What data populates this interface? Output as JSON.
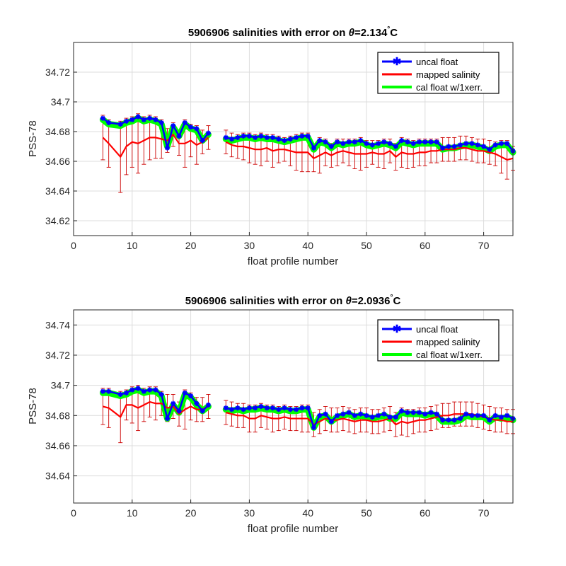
{
  "chart_data": [
    {
      "type": "line",
      "title_prefix": "5906906 salinities with error on ",
      "title_theta": "θ",
      "title_suffix": "=2.134",
      "title_degree": "°",
      "title_unit": "C",
      "xlabel": "float profile number",
      "ylabel": "PSS-78",
      "xlim": [
        0,
        75
      ],
      "ylim": [
        34.61,
        34.74
      ],
      "xticks": [
        0,
        10,
        20,
        30,
        40,
        50,
        60,
        70
      ],
      "yticks": [
        34.62,
        34.64,
        34.66,
        34.68,
        34.7,
        34.72
      ],
      "ytick_labels": [
        "34.62",
        "34.64",
        "34.66",
        "34.68",
        "34.7",
        "34.72"
      ],
      "grid": true,
      "legend_position": "top-right",
      "legend": [
        "uncal float",
        "mapped salinity",
        "cal float w/1xerr."
      ],
      "colors": {
        "uncal": "#0000ff",
        "mapped": "#ff0000",
        "cal": "#00ff00"
      },
      "x": [
        5,
        6,
        8,
        9,
        10,
        11,
        12,
        13,
        14,
        15,
        16,
        17,
        18,
        19,
        20,
        21,
        22,
        23,
        26,
        27,
        28,
        29,
        30,
        31,
        32,
        33,
        34,
        35,
        36,
        37,
        38,
        39,
        40,
        41,
        42,
        43,
        44,
        45,
        46,
        47,
        48,
        49,
        50,
        51,
        52,
        53,
        54,
        55,
        56,
        57,
        58,
        59,
        60,
        61,
        62,
        63,
        64,
        65,
        66,
        67,
        68,
        69,
        70,
        71,
        72,
        73,
        74,
        75
      ],
      "series": [
        {
          "name": "uncal float",
          "values": [
            34.689,
            34.686,
            34.685,
            34.687,
            34.688,
            34.69,
            34.688,
            34.689,
            34.688,
            34.686,
            34.669,
            34.684,
            34.677,
            34.686,
            34.683,
            34.682,
            34.674,
            34.679,
            34.676,
            34.675,
            34.676,
            34.677,
            34.677,
            34.676,
            34.677,
            34.676,
            34.676,
            34.675,
            34.674,
            34.675,
            34.676,
            34.677,
            34.677,
            34.669,
            34.674,
            34.673,
            34.67,
            34.673,
            34.672,
            34.673,
            34.673,
            34.674,
            34.672,
            34.671,
            34.672,
            34.673,
            34.672,
            34.67,
            34.674,
            34.673,
            34.672,
            34.673,
            34.673,
            34.673,
            34.673,
            34.669,
            34.67,
            34.67,
            34.671,
            34.672,
            34.672,
            34.671,
            34.67,
            34.668,
            34.671,
            34.672,
            34.672,
            34.667
          ]
        },
        {
          "name": "mapped salinity",
          "values": [
            34.676,
            34.672,
            34.663,
            34.67,
            34.673,
            34.672,
            34.674,
            34.676,
            34.676,
            34.675,
            34.674,
            34.678,
            34.672,
            34.672,
            34.674,
            34.671,
            34.673,
            34.676,
            34.673,
            34.671,
            34.67,
            34.67,
            34.669,
            34.668,
            34.668,
            34.669,
            34.667,
            34.668,
            34.668,
            34.667,
            34.666,
            34.666,
            34.666,
            34.662,
            34.664,
            34.666,
            34.664,
            34.666,
            34.667,
            34.666,
            34.665,
            34.665,
            34.665,
            34.666,
            34.665,
            34.665,
            34.667,
            34.663,
            34.666,
            34.665,
            34.665,
            34.666,
            34.666,
            34.667,
            34.667,
            34.668,
            34.668,
            34.668,
            34.669,
            34.669,
            34.668,
            34.667,
            34.667,
            34.666,
            34.665,
            34.663,
            34.661,
            34.662
          ]
        },
        {
          "name": "cal float w/1xerr.",
          "values": [
            34.688,
            34.685,
            34.684,
            34.686,
            34.687,
            34.689,
            34.687,
            34.688,
            34.687,
            34.685,
            34.67,
            34.683,
            34.677,
            34.685,
            34.682,
            34.681,
            34.674,
            34.678,
            34.675,
            34.674,
            34.675,
            34.676,
            34.676,
            34.675,
            34.676,
            34.675,
            34.675,
            34.674,
            34.673,
            34.674,
            34.675,
            34.676,
            34.676,
            34.668,
            34.673,
            34.672,
            34.669,
            34.672,
            34.671,
            34.672,
            34.672,
            34.673,
            34.671,
            34.67,
            34.671,
            34.672,
            34.671,
            34.669,
            34.673,
            34.672,
            34.671,
            34.672,
            34.672,
            34.672,
            34.672,
            34.668,
            34.669,
            34.669,
            34.67,
            34.671,
            34.671,
            34.67,
            34.669,
            34.667,
            34.67,
            34.671,
            34.671,
            34.666
          ]
        }
      ]
    },
    {
      "type": "line",
      "title_prefix": "5906906 salinities with error on ",
      "title_theta": "θ",
      "title_suffix": "=2.0936",
      "title_degree": "°",
      "title_unit": "C",
      "xlabel": "float profile number",
      "ylabel": "PSS-78",
      "xlim": [
        0,
        75
      ],
      "ylim": [
        34.622,
        34.75
      ],
      "xticks": [
        0,
        10,
        20,
        30,
        40,
        50,
        60,
        70
      ],
      "yticks": [
        34.64,
        34.66,
        34.68,
        34.7,
        34.72,
        34.74
      ],
      "ytick_labels": [
        "34.64",
        "34.66",
        "34.68",
        "34.7",
        "34.72",
        "34.74"
      ],
      "grid": true,
      "legend_position": "top-right",
      "legend": [
        "uncal float",
        "mapped salinity",
        "cal float w/1xerr."
      ],
      "colors": {
        "uncal": "#0000ff",
        "mapped": "#ff0000",
        "cal": "#00ff00"
      },
      "x": [
        5,
        6,
        8,
        9,
        10,
        11,
        12,
        13,
        14,
        15,
        16,
        17,
        18,
        19,
        20,
        21,
        22,
        23,
        26,
        27,
        28,
        29,
        30,
        31,
        32,
        33,
        34,
        35,
        36,
        37,
        38,
        39,
        40,
        41,
        42,
        43,
        44,
        45,
        46,
        47,
        48,
        49,
        50,
        51,
        52,
        53,
        54,
        55,
        56,
        57,
        58,
        59,
        60,
        61,
        62,
        63,
        64,
        65,
        66,
        67,
        68,
        69,
        70,
        71,
        72,
        73,
        74,
        75
      ],
      "series": [
        {
          "name": "uncal float",
          "values": [
            34.696,
            34.696,
            34.694,
            34.695,
            34.697,
            34.698,
            34.696,
            34.697,
            34.697,
            34.694,
            34.678,
            34.688,
            34.683,
            34.695,
            34.693,
            34.688,
            34.683,
            34.687,
            34.685,
            34.684,
            34.685,
            34.684,
            34.685,
            34.685,
            34.686,
            34.685,
            34.685,
            34.684,
            34.685,
            34.684,
            34.684,
            34.685,
            34.685,
            34.672,
            34.68,
            34.681,
            34.676,
            34.68,
            34.681,
            34.682,
            34.68,
            34.681,
            34.68,
            34.679,
            34.68,
            34.681,
            34.679,
            34.679,
            34.683,
            34.682,
            34.682,
            34.682,
            34.681,
            34.682,
            34.681,
            34.677,
            34.677,
            34.677,
            34.678,
            34.681,
            34.68,
            34.68,
            34.68,
            34.677,
            34.68,
            34.679,
            34.68,
            34.678
          ]
        },
        {
          "name": "mapped salinity",
          "values": [
            34.686,
            34.685,
            34.679,
            34.687,
            34.687,
            34.685,
            34.687,
            34.689,
            34.688,
            34.688,
            34.685,
            34.686,
            34.681,
            34.684,
            34.686,
            34.684,
            34.684,
            34.686,
            34.682,
            34.681,
            34.68,
            34.68,
            34.678,
            34.678,
            34.68,
            34.679,
            34.678,
            34.678,
            34.679,
            34.678,
            34.678,
            34.678,
            34.678,
            34.674,
            34.676,
            34.678,
            34.677,
            34.677,
            34.678,
            34.677,
            34.676,
            34.677,
            34.677,
            34.676,
            34.676,
            34.677,
            34.678,
            34.674,
            34.676,
            34.675,
            34.676,
            34.677,
            34.677,
            34.678,
            34.679,
            34.68,
            34.68,
            34.681,
            34.681,
            34.681,
            34.681,
            34.68,
            34.679,
            34.678,
            34.677,
            34.677,
            34.676,
            34.676
          ]
        },
        {
          "name": "cal float w/1xerr.",
          "values": [
            34.695,
            34.695,
            34.693,
            34.694,
            34.696,
            34.697,
            34.695,
            34.696,
            34.696,
            34.693,
            34.678,
            34.687,
            34.682,
            34.694,
            34.692,
            34.687,
            34.683,
            34.686,
            34.684,
            34.683,
            34.684,
            34.683,
            34.684,
            34.684,
            34.685,
            34.684,
            34.684,
            34.683,
            34.684,
            34.683,
            34.683,
            34.684,
            34.684,
            34.672,
            34.679,
            34.68,
            34.676,
            34.679,
            34.68,
            34.681,
            34.679,
            34.68,
            34.679,
            34.678,
            34.679,
            34.68,
            34.678,
            34.678,
            34.682,
            34.681,
            34.681,
            34.681,
            34.68,
            34.681,
            34.68,
            34.676,
            34.676,
            34.676,
            34.677,
            34.68,
            34.679,
            34.679,
            34.679,
            34.676,
            34.679,
            34.678,
            34.679,
            34.677
          ]
        }
      ]
    }
  ]
}
